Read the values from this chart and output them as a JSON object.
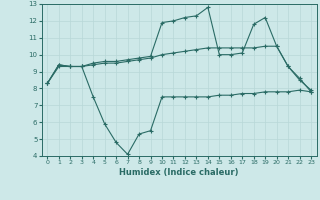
{
  "xlabel": "Humidex (Indice chaleur)",
  "bg_color": "#cde8e8",
  "grid_color": "#b8d8d8",
  "line_color": "#2a6b65",
  "xlim": [
    -0.5,
    23.5
  ],
  "ylim": [
    4,
    13
  ],
  "xticks": [
    0,
    1,
    2,
    3,
    4,
    5,
    6,
    7,
    8,
    9,
    10,
    11,
    12,
    13,
    14,
    15,
    16,
    17,
    18,
    19,
    20,
    21,
    22,
    23
  ],
  "yticks": [
    4,
    5,
    6,
    7,
    8,
    9,
    10,
    11,
    12,
    13
  ],
  "line1_x": [
    0,
    1,
    2,
    3,
    4,
    5,
    6,
    7,
    8,
    9,
    10,
    11,
    12,
    13,
    14,
    15,
    16,
    17,
    18,
    19,
    20,
    21,
    22,
    23
  ],
  "line1_y": [
    8.3,
    9.4,
    9.3,
    9.3,
    9.4,
    9.5,
    9.5,
    9.6,
    9.7,
    9.8,
    10.0,
    10.1,
    10.2,
    10.3,
    10.4,
    10.4,
    10.4,
    10.4,
    10.4,
    10.5,
    10.5,
    9.3,
    8.6,
    7.8
  ],
  "line2_x": [
    0,
    1,
    2,
    3,
    4,
    5,
    6,
    7,
    8,
    9,
    10,
    11,
    12,
    13,
    14,
    15,
    16,
    17,
    18,
    19,
    20,
    21,
    22,
    23
  ],
  "line2_y": [
    8.3,
    9.4,
    9.3,
    9.3,
    9.5,
    9.6,
    9.6,
    9.7,
    9.8,
    9.9,
    11.9,
    12.0,
    12.2,
    12.3,
    12.8,
    10.0,
    10.0,
    10.1,
    11.8,
    12.2,
    10.5,
    9.3,
    8.5,
    7.9
  ],
  "line3_x": [
    0,
    1,
    2,
    3,
    4,
    5,
    6,
    7,
    8,
    9,
    10,
    11,
    12,
    13,
    14,
    15,
    16,
    17,
    18,
    19,
    20,
    21,
    22,
    23
  ],
  "line3_y": [
    8.3,
    9.3,
    9.3,
    9.3,
    7.5,
    5.9,
    4.8,
    4.1,
    5.3,
    5.5,
    7.5,
    7.5,
    7.5,
    7.5,
    7.5,
    7.6,
    7.6,
    7.7,
    7.7,
    7.8,
    7.8,
    7.8,
    7.9,
    7.8
  ]
}
